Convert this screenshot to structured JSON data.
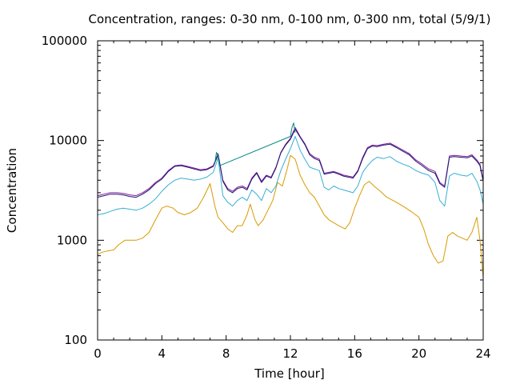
{
  "chart_data": {
    "type": "line",
    "title": "Concentration, ranges: 0-30 nm, 0-100 nm, 0-300 nm, total (5/9/1)",
    "xlabel": "Time [hour]",
    "ylabel": "Concentration",
    "xlim": [
      0,
      24
    ],
    "ylim": [
      100,
      100000
    ],
    "yscale": "log",
    "xticks": [
      0,
      4,
      8,
      12,
      16,
      20,
      24
    ],
    "yticks": [
      100,
      1000,
      10000,
      100000
    ],
    "xtick_labels": [
      "0",
      "4",
      "8",
      "12",
      "16",
      "20",
      "24"
    ],
    "ytick_labels": [
      "100",
      "1000",
      "10000",
      "100000"
    ],
    "grid": false,
    "legend": "none",
    "series": [
      {
        "color": "#d99a00",
        "x": [
          0,
          0.3,
          0.6,
          1.0,
          1.3,
          1.7,
          2.0,
          2.4,
          2.8,
          3.2,
          3.6,
          4.0,
          4.3,
          4.7,
          5.0,
          5.4,
          5.8,
          6.2,
          6.6,
          7.0,
          7.3,
          7.5,
          7.8,
          8.1,
          8.4,
          8.7,
          9.0,
          9.3,
          9.5,
          9.8,
          10.0,
          10.3,
          10.6,
          10.9,
          11.2,
          11.5,
          11.8,
          12.0,
          12.3,
          12.6,
          12.9,
          13.2,
          13.5,
          13.8,
          14.1,
          14.4,
          14.7,
          15.0,
          15.4,
          15.7,
          16.0,
          16.3,
          16.6,
          16.9,
          17.2,
          17.6,
          18.0,
          18.4,
          18.8,
          19.2,
          19.6,
          20.0,
          20.3,
          20.6,
          20.9,
          21.2,
          21.5,
          21.8,
          22.1,
          22.4,
          22.7,
          23.0,
          23.3,
          23.6,
          23.8,
          24.0
        ],
        "values": [
          720,
          760,
          780,
          800,
          900,
          1000,
          1000,
          1000,
          1050,
          1200,
          1600,
          2100,
          2200,
          2100,
          1900,
          1800,
          1900,
          2100,
          2700,
          3700,
          2200,
          1700,
          1500,
          1300,
          1200,
          1400,
          1400,
          1800,
          2300,
          1600,
          1400,
          1600,
          2000,
          2500,
          3800,
          3500,
          5200,
          7100,
          6500,
          4500,
          3600,
          3000,
          2700,
          2200,
          1800,
          1600,
          1500,
          1400,
          1300,
          1500,
          2100,
          2800,
          3600,
          3900,
          3500,
          3100,
          2700,
          2500,
          2300,
          2100,
          1900,
          1700,
          1300,
          900,
          700,
          590,
          620,
          1100,
          1200,
          1100,
          1050,
          1000,
          1200,
          1700,
          1000,
          420
        ]
      },
      {
        "color": "#38afd4",
        "x": [
          0,
          0.4,
          0.8,
          1.2,
          1.6,
          2.0,
          2.4,
          2.8,
          3.2,
          3.6,
          4.0,
          4.4,
          4.8,
          5.2,
          5.6,
          6.0,
          6.4,
          6.8,
          7.2,
          7.5,
          7.8,
          8.1,
          8.4,
          8.7,
          9.0,
          9.3,
          9.6,
          9.9,
          10.2,
          10.5,
          10.8,
          11.1,
          11.4,
          11.7,
          12.0,
          12.3,
          12.6,
          12.9,
          13.2,
          13.5,
          13.8,
          14.1,
          14.4,
          14.7,
          15.0,
          15.3,
          15.6,
          15.9,
          16.2,
          16.5,
          16.8,
          17.1,
          17.4,
          17.8,
          18.2,
          18.6,
          19.0,
          19.4,
          19.8,
          20.2,
          20.6,
          21.0,
          21.3,
          21.6,
          21.9,
          22.2,
          22.6,
          23.0,
          23.3,
          23.6,
          23.8,
          24.0
        ],
        "values": [
          1800,
          1850,
          1950,
          2050,
          2100,
          2050,
          2000,
          2100,
          2300,
          2600,
          3100,
          3600,
          4000,
          4200,
          4100,
          4000,
          4100,
          4300,
          4800,
          6700,
          2800,
          2400,
          2200,
          2500,
          2700,
          2500,
          3200,
          2900,
          2500,
          3300,
          3000,
          3500,
          5000,
          6500,
          8300,
          11000,
          8000,
          6500,
          5400,
          5200,
          5000,
          3400,
          3200,
          3500,
          3300,
          3200,
          3100,
          3000,
          3500,
          4800,
          5600,
          6300,
          6800,
          6600,
          6900,
          6200,
          5800,
          5500,
          5000,
          4700,
          4500,
          3800,
          2500,
          2200,
          4400,
          4700,
          4500,
          4400,
          4700,
          3900,
          3200,
          2300
        ]
      },
      {
        "color": "#8a1aa0",
        "x": [
          0,
          0.4,
          0.8,
          1.2,
          1.6,
          2.0,
          2.4,
          2.8,
          3.2,
          3.6,
          4.0,
          4.4,
          4.8,
          5.2,
          5.6,
          6.0,
          6.4,
          6.8,
          7.2,
          7.5,
          7.8,
          8.1,
          8.4,
          8.7,
          9.0,
          9.3,
          9.6,
          9.9,
          10.2,
          10.5,
          10.8,
          11.1,
          11.4,
          11.7,
          12.0,
          12.3,
          12.6,
          12.9,
          13.2,
          13.5,
          13.8,
          14.1,
          14.4,
          14.7,
          15.0,
          15.3,
          15.6,
          15.9,
          16.2,
          16.5,
          16.8,
          17.1,
          17.4,
          17.8,
          18.2,
          18.6,
          19.0,
          19.4,
          19.8,
          20.2,
          20.6,
          21.0,
          21.3,
          21.6,
          21.9,
          22.2,
          22.6,
          23.0,
          23.3,
          23.6,
          23.8,
          24.0
        ],
        "values": [
          2800,
          2900,
          3000,
          3000,
          2950,
          2850,
          2800,
          3000,
          3300,
          3800,
          4200,
          5000,
          5600,
          5700,
          5500,
          5300,
          5100,
          5200,
          5600,
          7400,
          4000,
          3300,
          3100,
          3400,
          3500,
          3300,
          4200,
          4800,
          3900,
          4500,
          4300,
          5400,
          7600,
          9200,
          10500,
          13500,
          11000,
          9300,
          7400,
          6800,
          6500,
          4700,
          4800,
          4900,
          4700,
          4500,
          4400,
          4300,
          5000,
          6800,
          8500,
          9000,
          8900,
          9200,
          9400,
          8700,
          8000,
          7400,
          6400,
          5800,
          5200,
          4900,
          3800,
          3500,
          7000,
          7100,
          7000,
          6900,
          7200,
          6400,
          5800,
          4000
        ]
      },
      {
        "color": "#1a1a70",
        "x": [
          0,
          0.4,
          0.8,
          1.2,
          1.6,
          2.0,
          2.4,
          2.8,
          3.2,
          3.6,
          4.0,
          4.4,
          4.8,
          5.2,
          5.6,
          6.0,
          6.4,
          6.8,
          7.2,
          7.5,
          7.8,
          8.1,
          8.4,
          8.7,
          9.0,
          9.3,
          9.6,
          9.9,
          10.2,
          10.5,
          10.8,
          11.1,
          11.4,
          11.7,
          12.0,
          12.3,
          12.6,
          12.9,
          13.2,
          13.5,
          13.8,
          14.1,
          14.4,
          14.7,
          15.0,
          15.3,
          15.6,
          15.9,
          16.2,
          16.5,
          16.8,
          17.1,
          17.4,
          17.8,
          18.2,
          18.6,
          19.0,
          19.4,
          19.8,
          20.2,
          20.6,
          21.0,
          21.3,
          21.6,
          21.9,
          22.2,
          22.6,
          23.0,
          23.3,
          23.6,
          23.8,
          24.0
        ],
        "values": [
          2700,
          2800,
          2900,
          2900,
          2850,
          2750,
          2700,
          2900,
          3200,
          3700,
          4100,
          4900,
          5500,
          5600,
          5400,
          5200,
          5000,
          5100,
          5500,
          7200,
          3900,
          3200,
          3000,
          3300,
          3400,
          3200,
          4100,
          4700,
          3800,
          4400,
          4200,
          5300,
          7500,
          9000,
          10300,
          13000,
          10800,
          9100,
          7200,
          6600,
          6300,
          4600,
          4700,
          4800,
          4600,
          4400,
          4300,
          4200,
          4900,
          6600,
          8300,
          8800,
          8700,
          9000,
          9200,
          8500,
          7800,
          7200,
          6200,
          5600,
          5000,
          4700,
          3700,
          3400,
          6800,
          6900,
          6800,
          6700,
          7000,
          6200,
          5600,
          3900
        ]
      },
      {
        "color": "#008b80",
        "x": [
          7.3,
          7.4,
          7.5,
          7.6,
          12.0,
          12.1,
          12.2,
          12.3
        ],
        "values": [
          6000,
          7600,
          7000,
          5600,
          11000,
          13500,
          15000,
          12000
        ]
      }
    ]
  }
}
